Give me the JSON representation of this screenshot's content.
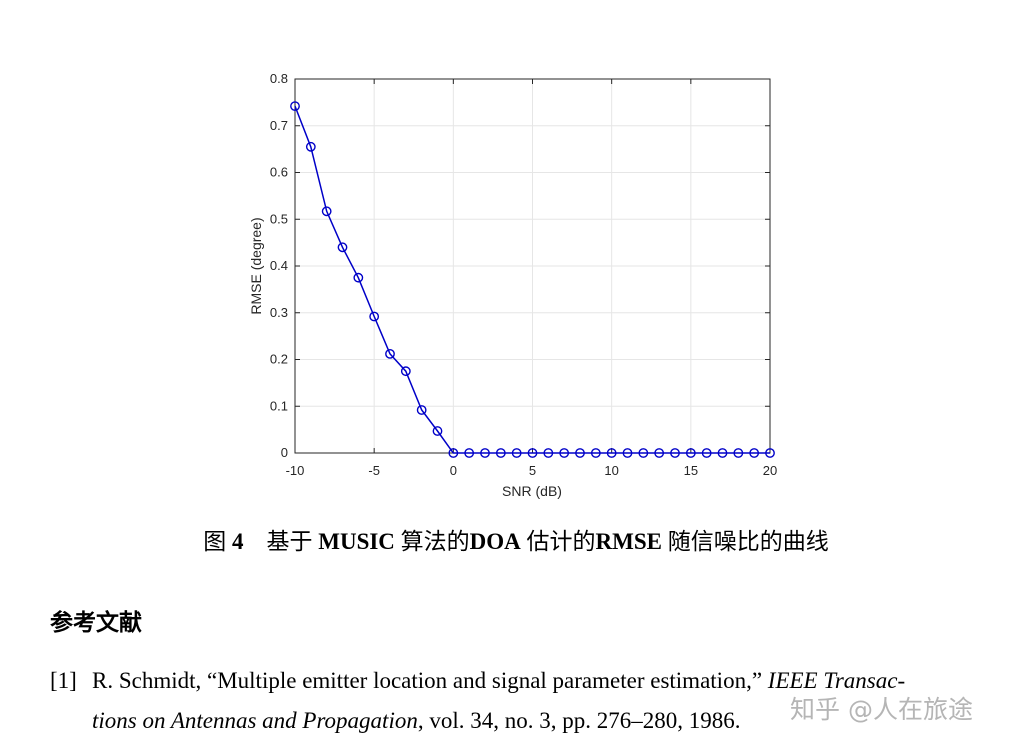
{
  "chart_data": {
    "type": "line",
    "x": [
      -10,
      -9,
      -8,
      -7,
      -6,
      -5,
      -4,
      -3,
      -2,
      -1,
      0,
      1,
      2,
      3,
      4,
      5,
      6,
      7,
      8,
      9,
      10,
      11,
      12,
      13,
      14,
      15,
      16,
      17,
      18,
      19,
      20
    ],
    "series": [
      {
        "values": [
          0.742,
          0.655,
          0.517,
          0.44,
          0.375,
          0.292,
          0.212,
          0.175,
          0.092,
          0.047,
          0,
          0,
          0,
          0,
          0,
          0,
          0,
          0,
          0,
          0,
          0,
          0,
          0,
          0,
          0,
          0,
          0,
          0,
          0,
          0,
          0
        ],
        "color": "#0000c8",
        "marker": "circle"
      }
    ],
    "xlabel": "SNR (dB)",
    "ylabel": "RMSE (degree)",
    "xlim": [
      -10,
      20
    ],
    "ylim": [
      0,
      0.8
    ],
    "xticks": [
      "-10",
      "-5",
      "0",
      "5",
      "10",
      "15",
      "20"
    ],
    "yticks": [
      "0",
      "0.1",
      "0.2",
      "0.3",
      "0.4",
      "0.5",
      "0.6",
      "0.7",
      "0.8"
    ],
    "grid": true
  },
  "caption": {
    "fig_label": "图",
    "fig_num": "4",
    "text1": "基于",
    "bold1": "MUSIC",
    "text2": "算法的",
    "bold2": "DOA",
    "text3": "估计的",
    "bold3": "RMSE",
    "text4": "随信噪比的曲线"
  },
  "references": {
    "heading": "参考文献",
    "items": [
      {
        "num": "[1]",
        "line1_plain": "R. Schmidt, “Multiple emitter location and signal parameter estimation,” ",
        "line1_italic": "IEEE Transac-",
        "line2_italic": "tions on Antennas and Propagation",
        "line2_plain": ", vol. 34, no. 3, pp. 276–280, 1986."
      }
    ]
  },
  "watermark": "知乎 @人在旅途"
}
